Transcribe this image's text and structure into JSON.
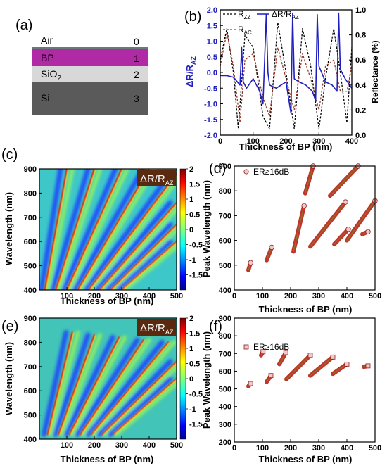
{
  "panels": {
    "a": {
      "label": "(a)",
      "layers": [
        {
          "name": "Air",
          "index": "0",
          "color": "#ffffff"
        },
        {
          "name": "BP",
          "index": "1",
          "color": "#b02aa6"
        },
        {
          "name": "SiO",
          "sub": "2",
          "index": "2",
          "color": "#d8d8d8"
        },
        {
          "name": "Si",
          "index": "3",
          "color": "#5a5a5a"
        }
      ]
    },
    "b": {
      "label": "(b)",
      "xlabel": "Thickness of BP (nm)",
      "ylabel_left_main": "ΔR/R",
      "ylabel_left_sub": "AZ",
      "ylabel_right": "Reflectance (%)",
      "legend": [
        {
          "main": "R",
          "sub": "ZZ",
          "style": "dashed",
          "color": "#000000"
        },
        {
          "main": "ΔR/R",
          "sub": "AZ",
          "style": "solid",
          "color": "#1f1fbf"
        },
        {
          "main": "R",
          "sub": "AC",
          "style": "dashed",
          "color": "#9b3a2a"
        }
      ],
      "xticks": [
        "0",
        "100",
        "200",
        "300",
        "400"
      ],
      "yticks_left": [
        "-2.0",
        "-1.5",
        "-1.0",
        "-0.5",
        "0.0",
        "0.5",
        "1.0",
        "1.5",
        "2.0"
      ],
      "yticks_right": [
        "0.0",
        "0.2",
        "0.4",
        "0.6",
        "0.8",
        "1.0"
      ]
    },
    "c": {
      "label": "(c)",
      "badge_main": "ΔR/R",
      "badge_sub": "AZ",
      "xlabel": "Thickness of BP (nm)",
      "ylabel": "Wavelength (nm)",
      "xticks": [
        "100",
        "200",
        "300",
        "400",
        "500"
      ],
      "yticks": [
        "400",
        "500",
        "600",
        "700",
        "800",
        "900"
      ],
      "cbar_ticks": [
        "2",
        "1.5",
        "1",
        "0.5",
        "0",
        "-0.5",
        "-1",
        "-1.5"
      ]
    },
    "d": {
      "label": "(d)",
      "legend": "ER≥16dB",
      "xlabel": "Thickness of BP (nm)",
      "ylabel": "Peak Wavelength (nm)",
      "xticks": [
        "0",
        "100",
        "200",
        "300",
        "400",
        "500"
      ],
      "yticks": [
        "400",
        "500",
        "600",
        "700",
        "800",
        "900"
      ]
    },
    "e": {
      "label": "(e)",
      "badge_main": "ΔR/R",
      "badge_sub": "AZ",
      "xlabel": "Thickness of BP (nm)",
      "ylabel": "Wavelength (nm)",
      "xticks": [
        "100",
        "200",
        "300",
        "400",
        "500"
      ],
      "yticks": [
        "400",
        "500",
        "600",
        "700",
        "800",
        "900"
      ],
      "cbar_ticks": [
        "2",
        "1.5",
        "1",
        "0.5",
        "0",
        "-0.5",
        "-1",
        "-1.5"
      ]
    },
    "f": {
      "label": "(f)",
      "legend": "ER≥16dB",
      "xlabel": "Thickness of BP (nm)",
      "ylabel": "Peak Wavelength (nm)",
      "xticks": [
        "0",
        "100",
        "200",
        "300",
        "400",
        "500"
      ],
      "yticks": [
        "200",
        "300",
        "400",
        "500",
        "600",
        "700",
        "800",
        "900"
      ]
    }
  },
  "chart_data": [
    {
      "panel": "b",
      "type": "line",
      "xlabel": "Thickness of BP (nm)",
      "ylabel": "ΔR/R_AZ",
      "ylabel_right": "Reflectance (%)",
      "xlim": [
        0,
        400
      ],
      "ylim": [
        -2.0,
        2.0
      ],
      "ylim_right": [
        0.0,
        1.0
      ],
      "series": [
        {
          "name": "R_ZZ",
          "axis": "right",
          "x": [
            0,
            20,
            40,
            55,
            75,
            100,
            130,
            150,
            175,
            200,
            225,
            250,
            275,
            300,
            320,
            345,
            365,
            385,
            400
          ],
          "y": [
            0.6,
            0.85,
            0.5,
            0.05,
            0.8,
            0.7,
            0.15,
            0.05,
            0.9,
            0.5,
            0.05,
            0.85,
            0.55,
            0.05,
            0.45,
            0.85,
            0.5,
            0.1,
            0.7
          ]
        },
        {
          "name": "R_AC",
          "axis": "right",
          "x": [
            0,
            20,
            40,
            60,
            75,
            100,
            130,
            150,
            175,
            200,
            225,
            250,
            275,
            300,
            320,
            345,
            365,
            385,
            400
          ],
          "y": [
            0.55,
            0.82,
            0.55,
            0.1,
            0.6,
            0.65,
            0.3,
            0.15,
            0.7,
            0.45,
            0.2,
            0.65,
            0.45,
            0.2,
            0.55,
            0.6,
            0.35,
            0.35,
            0.55
          ]
        },
        {
          "name": "ΔR/R_AZ",
          "axis": "left",
          "x": [
            0,
            20,
            40,
            60,
            65,
            70,
            80,
            100,
            120,
            130,
            140,
            145,
            150,
            170,
            200,
            215,
            220,
            225,
            240,
            260,
            280,
            290,
            295,
            300,
            320,
            340,
            355,
            360,
            365,
            380,
            400
          ],
          "y": [
            -0.1,
            -0.1,
            -0.15,
            -0.4,
            0.8,
            -0.3,
            -0.5,
            -0.2,
            -0.6,
            -1.0,
            1.85,
            0.0,
            -0.4,
            -0.5,
            -0.3,
            -1.3,
            1.9,
            -0.2,
            -0.3,
            -0.4,
            -0.6,
            -0.9,
            1.85,
            0.2,
            -0.3,
            -0.4,
            -0.6,
            1.9,
            0.1,
            -0.2,
            -0.5
          ]
        }
      ]
    },
    {
      "panel": "c",
      "type": "heatmap",
      "xlabel": "Thickness of BP (nm)",
      "ylabel": "Wavelength (nm)",
      "xlim": [
        0,
        500
      ],
      "ylim": [
        400,
        900
      ],
      "zlim": [
        -1.5,
        2
      ],
      "branches": [
        {
          "order": 1,
          "x": [
            20,
            100
          ],
          "y": [
            400,
            900
          ]
        },
        {
          "order": 2,
          "x": [
            60,
            200
          ],
          "y": [
            400,
            900
          ]
        },
        {
          "order": 3,
          "x": [
            100,
            300
          ],
          "y": [
            400,
            900
          ]
        },
        {
          "order": 4,
          "x": [
            140,
            400
          ],
          "y": [
            400,
            900
          ]
        },
        {
          "order": 5,
          "x": [
            180,
            500
          ],
          "y": [
            400,
            880
          ]
        },
        {
          "order": 6,
          "x": [
            220,
            500
          ],
          "y": [
            400,
            760
          ]
        },
        {
          "order": 7,
          "x": [
            260,
            500
          ],
          "y": [
            400,
            670
          ]
        },
        {
          "order": 8,
          "x": [
            300,
            500
          ],
          "y": [
            400,
            600
          ]
        }
      ]
    },
    {
      "panel": "d",
      "type": "scatter",
      "xlabel": "Thickness of BP (nm)",
      "ylabel": "Peak Wavelength (nm)",
      "xlim": [
        0,
        500
      ],
      "ylim": [
        400,
        900
      ],
      "series": [
        {
          "name": "ER≥16dB",
          "segments": [
            {
              "x": [
                50,
                58
              ],
              "y": [
                480,
                510
              ]
            },
            {
              "x": [
                115,
                133
              ],
              "y": [
                520,
                572
              ]
            },
            {
              "x": [
                210,
                248
              ],
              "y": [
                555,
                740
              ]
            },
            {
              "x": [
                252,
                280
              ],
              "y": [
                790,
                900
              ]
            },
            {
              "x": [
                270,
                395
              ],
              "y": [
                575,
                755
              ]
            },
            {
              "x": [
                340,
                440
              ],
              "y": [
                780,
                900
              ]
            },
            {
              "x": [
                355,
                405
              ],
              "y": [
                585,
                645
              ]
            },
            {
              "x": [
                400,
                500
              ],
              "y": [
                600,
                760
              ]
            },
            {
              "x": [
                455,
                475
              ],
              "y": [
                625,
                635
              ]
            }
          ]
        }
      ]
    },
    {
      "panel": "e",
      "type": "heatmap",
      "xlabel": "Thickness of BP (nm)",
      "ylabel": "Wavelength (nm)",
      "xlim": [
        0,
        500
      ],
      "ylim": [
        400,
        900
      ],
      "zlim": [
        -1.5,
        2
      ],
      "branches": [
        {
          "order": 1,
          "x": [
            30,
            120
          ],
          "y": [
            420,
            840
          ]
        },
        {
          "order": 2,
          "x": [
            70,
            200
          ],
          "y": [
            420,
            830
          ]
        },
        {
          "order": 3,
          "x": [
            110,
            290
          ],
          "y": [
            420,
            820
          ]
        },
        {
          "order": 4,
          "x": [
            150,
            380
          ],
          "y": [
            420,
            810
          ]
        },
        {
          "order": 5,
          "x": [
            190,
            470
          ],
          "y": [
            420,
            800
          ]
        },
        {
          "order": 6,
          "x": [
            230,
            500
          ],
          "y": [
            420,
            720
          ]
        },
        {
          "order": 7,
          "x": [
            270,
            500
          ],
          "y": [
            420,
            650
          ]
        }
      ]
    },
    {
      "panel": "f",
      "type": "scatter",
      "xlabel": "Thickness of BP (nm)",
      "ylabel": "Peak Wavelength (nm)",
      "xlim": [
        0,
        500
      ],
      "ylim": [
        200,
        900
      ],
      "series": [
        {
          "name": "ER≥16dB",
          "segments": [
            {
              "x": [
                50,
                58
              ],
              "y": [
                515,
                530
              ]
            },
            {
              "x": [
                95,
                102
              ],
              "y": [
                690,
                710
              ]
            },
            {
              "x": [
                115,
                130
              ],
              "y": [
                540,
                575
              ]
            },
            {
              "x": [
                160,
                183
              ],
              "y": [
                640,
                705
              ]
            },
            {
              "x": [
                185,
                270
              ],
              "y": [
                555,
                690
              ]
            },
            {
              "x": [
                270,
                350
              ],
              "y": [
                575,
                680
              ]
            },
            {
              "x": [
                350,
                400
              ],
              "y": [
                585,
                640
              ]
            },
            {
              "x": [
                460,
                475
              ],
              "y": [
                625,
                630
              ]
            }
          ]
        }
      ]
    }
  ]
}
